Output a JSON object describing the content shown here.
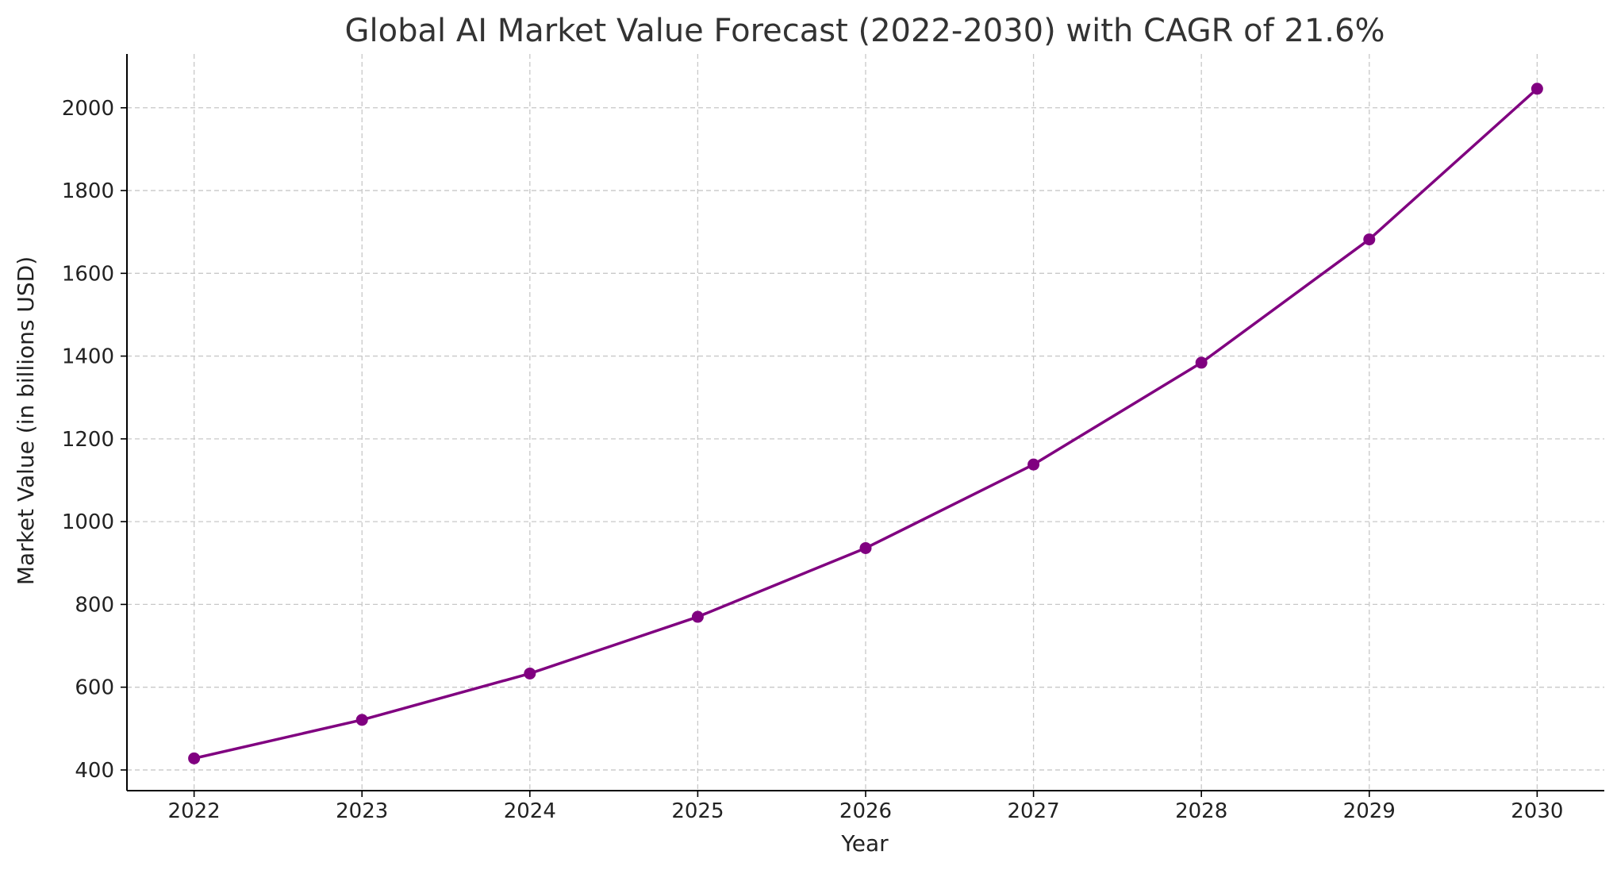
{
  "chart_data": {
    "type": "line",
    "title": "Global AI Market Value Forecast (2022-2030) with CAGR of 21.6%",
    "xlabel": "Year",
    "ylabel": "Market Value (in billions USD)",
    "x": [
      2022,
      2023,
      2024,
      2025,
      2026,
      2027,
      2028,
      2029,
      2030
    ],
    "x_tick_labels": [
      "2022",
      "2023",
      "2024",
      "2025",
      "2026",
      "2027",
      "2028",
      "2029",
      "2030"
    ],
    "series": [
      {
        "values": [
          428,
          521,
          633,
          770,
          936,
          1138,
          1384,
          1682,
          2046
        ],
        "color": "#800080",
        "marker": "circle"
      }
    ],
    "y_ticks": [
      400,
      600,
      800,
      1000,
      1200,
      1400,
      1600,
      1800,
      2000
    ],
    "y_tick_labels": [
      "400",
      "600",
      "800",
      "1000",
      "1200",
      "1400",
      "1600",
      "1800",
      "2000"
    ],
    "xlim": [
      2021.6,
      2030.4
    ],
    "ylim": [
      350,
      2130
    ],
    "grid": true,
    "legend": false
  }
}
